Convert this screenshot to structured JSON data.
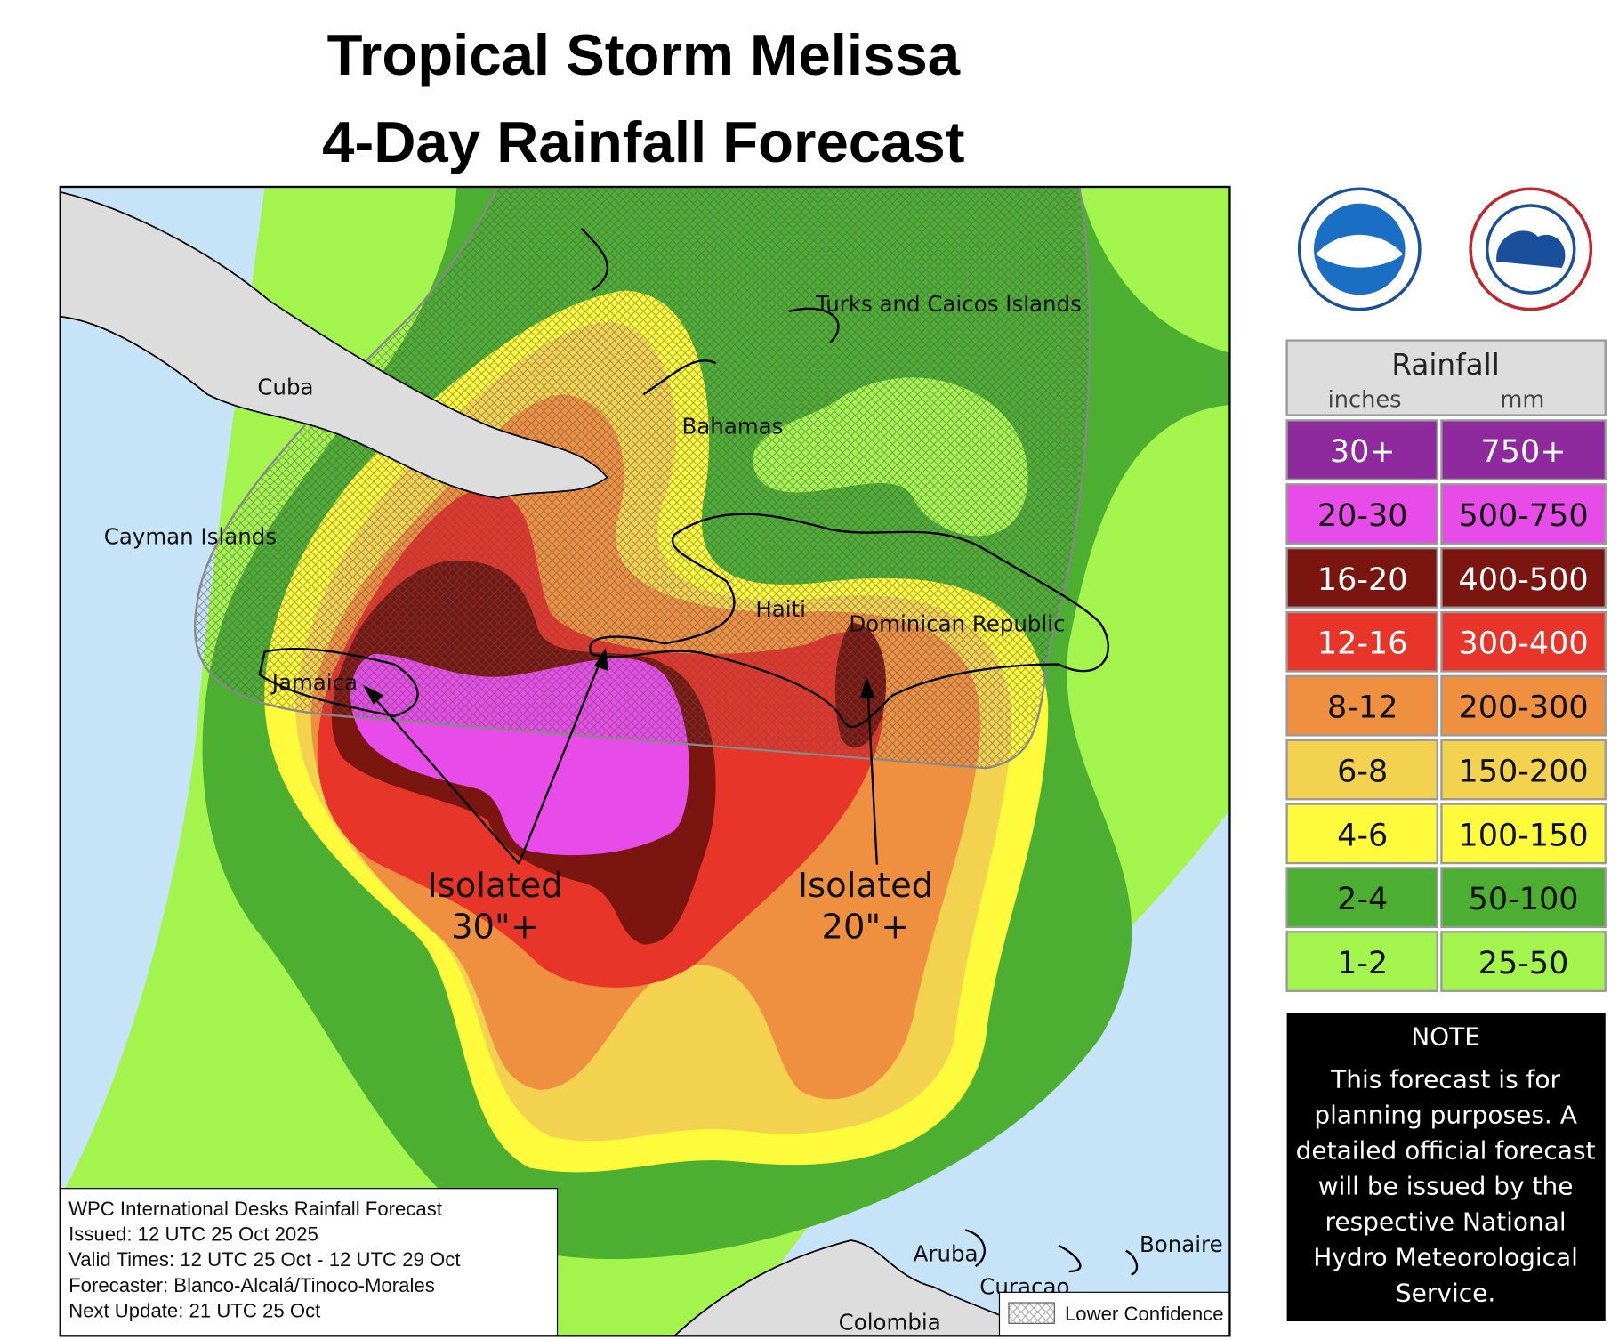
{
  "title": [
    "Tropical Storm Melissa",
    "4-Day Rainfall Forecast"
  ],
  "places": [
    {
      "label": "Cuba"
    },
    {
      "label": "Cayman Islands"
    },
    {
      "label": "Turks and Caicos Islands"
    },
    {
      "label": "Bahamas"
    },
    {
      "label": "Haiti"
    },
    {
      "label": "Dominican Republic"
    },
    {
      "label": "Jamaica"
    },
    {
      "label": "Aruba"
    },
    {
      "label": "Curacao"
    },
    {
      "label": "Bonaire"
    },
    {
      "label": "Colombia"
    }
  ],
  "annotations": [
    [
      "Isolated",
      "30\"+"
    ],
    [
      "Isolated",
      "20\"+"
    ]
  ],
  "legend": {
    "title": "Rainfall",
    "columns": [
      "inches",
      "mm"
    ],
    "items": [
      {
        "inches": "30+",
        "mm": "750+",
        "color": "#8e2a9e"
      },
      {
        "inches": "20-30",
        "mm": "500-750",
        "color": "#e84ce8"
      },
      {
        "inches": "16-20",
        "mm": "400-500",
        "color": "#7a150f"
      },
      {
        "inches": "12-16",
        "mm": "300-400",
        "color": "#e8352a"
      },
      {
        "inches": "8-12",
        "mm": "200-300",
        "color": "#ef9040"
      },
      {
        "inches": "6-8",
        "mm": "150-200",
        "color": "#f2d24e"
      },
      {
        "inches": "4-6",
        "mm": "100-150",
        "color": "#fefb3c"
      },
      {
        "inches": "2-4",
        "mm": "50-100",
        "color": "#4caf32"
      },
      {
        "inches": "1-2",
        "mm": "25-50",
        "color": "#a3f54e"
      }
    ]
  },
  "note": {
    "title": "NOTE",
    "lines": [
      "This forecast is for",
      "planning purposes. A",
      "detailed official forecast",
      "will be issued by the",
      "respective National",
      "Hydro Meteorological",
      "Service."
    ]
  },
  "info": [
    "WPC International Desks Rainfall Forecast",
    "Issued: 12 UTC 25 Oct 2025",
    "Valid Times: 12 UTC 25 Oct - 12 UTC 29 Oct",
    "Forecaster: Blanco-Alcalá/Tinoco-Morales",
    "Next Update: 21 UTC 25 Oct"
  ],
  "confidence_label": "Lower Confidence"
}
